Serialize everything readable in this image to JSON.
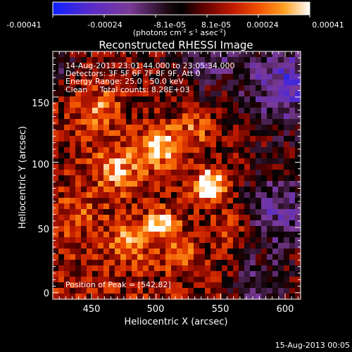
{
  "colorbar": {
    "tick_labels": [
      "-0.00041",
      "-0.00024",
      "-8.1e-05",
      "8.1e-05",
      "0.00024",
      "0.00041"
    ],
    "unit_main": "(photons cm",
    "unit_sup1": "-2",
    "unit_mid": " s",
    "unit_sup2": "-1",
    "unit_end": " asec",
    "unit_sup3": "-2",
    "unit_close": ")"
  },
  "plot": {
    "title": "Reconstructed RHESSI Image",
    "info_lines": [
      "14-Aug-2013 23:01:44.000 to 23:05:34.000",
      "Detectors: 3F 5F 6F 7F 8F 9F, Att 0",
      "Energy Range: 25.0 - 50.0 keV",
      "Clean     Total counts: 8.28E+03"
    ],
    "peak_label": "Position of Peak = [542,82]",
    "xlabel": "Heliocentric X (arcsec)",
    "ylabel": "Heliocentric Y (arcsec)",
    "xticks": [
      "450",
      "500",
      "550",
      "600"
    ],
    "yticks": [
      "0",
      "50",
      "100",
      "150"
    ],
    "xlim": [
      420,
      612
    ],
    "ylim": [
      -5,
      185
    ]
  },
  "footer": {
    "date": "15-Aug-2013 00:05"
  },
  "colors": {
    "background": "#000000",
    "text": "#ffffff",
    "colormap": [
      "#1020ff",
      "#5a2bc8",
      "#7a3a95",
      "#3a1630",
      "#000000",
      "#4a0000",
      "#b01000",
      "#e83a00",
      "#ff8a10",
      "#ffd050",
      "#ffffff"
    ]
  },
  "chart_data": {
    "type": "heatmap",
    "title": "Reconstructed RHESSI Image",
    "xlabel": "Heliocentric X (arcsec)",
    "ylabel": "Heliocentric Y (arcsec)",
    "xlim": [
      420,
      612
    ],
    "ylim": [
      -5,
      185
    ],
    "colorbar_range": [
      -0.00041,
      0.00041
    ],
    "peak": [
      542,
      82
    ],
    "blobs": [
      {
        "x": 542,
        "y": 82,
        "amp": 0.00041,
        "sigma": 9
      },
      {
        "x": 505,
        "y": 52,
        "amp": 0.00032,
        "sigma": 8
      },
      {
        "x": 502,
        "y": 112,
        "amp": 0.0003,
        "sigma": 11
      },
      {
        "x": 470,
        "y": 95,
        "amp": 0.00022,
        "sigma": 14
      },
      {
        "x": 455,
        "y": 140,
        "amp": 0.0002,
        "sigma": 12
      },
      {
        "x": 480,
        "y": 40,
        "amp": 0.00018,
        "sigma": 12
      },
      {
        "x": 530,
        "y": 125,
        "amp": 0.00017,
        "sigma": 10
      },
      {
        "x": 520,
        "y": 30,
        "amp": 0.00015,
        "sigma": 10
      },
      {
        "x": 560,
        "y": 50,
        "amp": 0.00012,
        "sigma": 10
      },
      {
        "x": 440,
        "y": 60,
        "amp": 0.00014,
        "sigma": 10
      }
    ],
    "negative_regions": [
      {
        "x": 600,
        "y": 160,
        "amp": -0.0003,
        "sigma": 22
      },
      {
        "x": 595,
        "y": 60,
        "amp": -0.00025,
        "sigma": 20
      },
      {
        "x": 580,
        "y": 5,
        "amp": -0.0002,
        "sigma": 15
      },
      {
        "x": 540,
        "y": 180,
        "amp": -0.00018,
        "sigma": 16
      },
      {
        "x": 425,
        "y": 175,
        "amp": -0.00015,
        "sigma": 10
      }
    ]
  }
}
